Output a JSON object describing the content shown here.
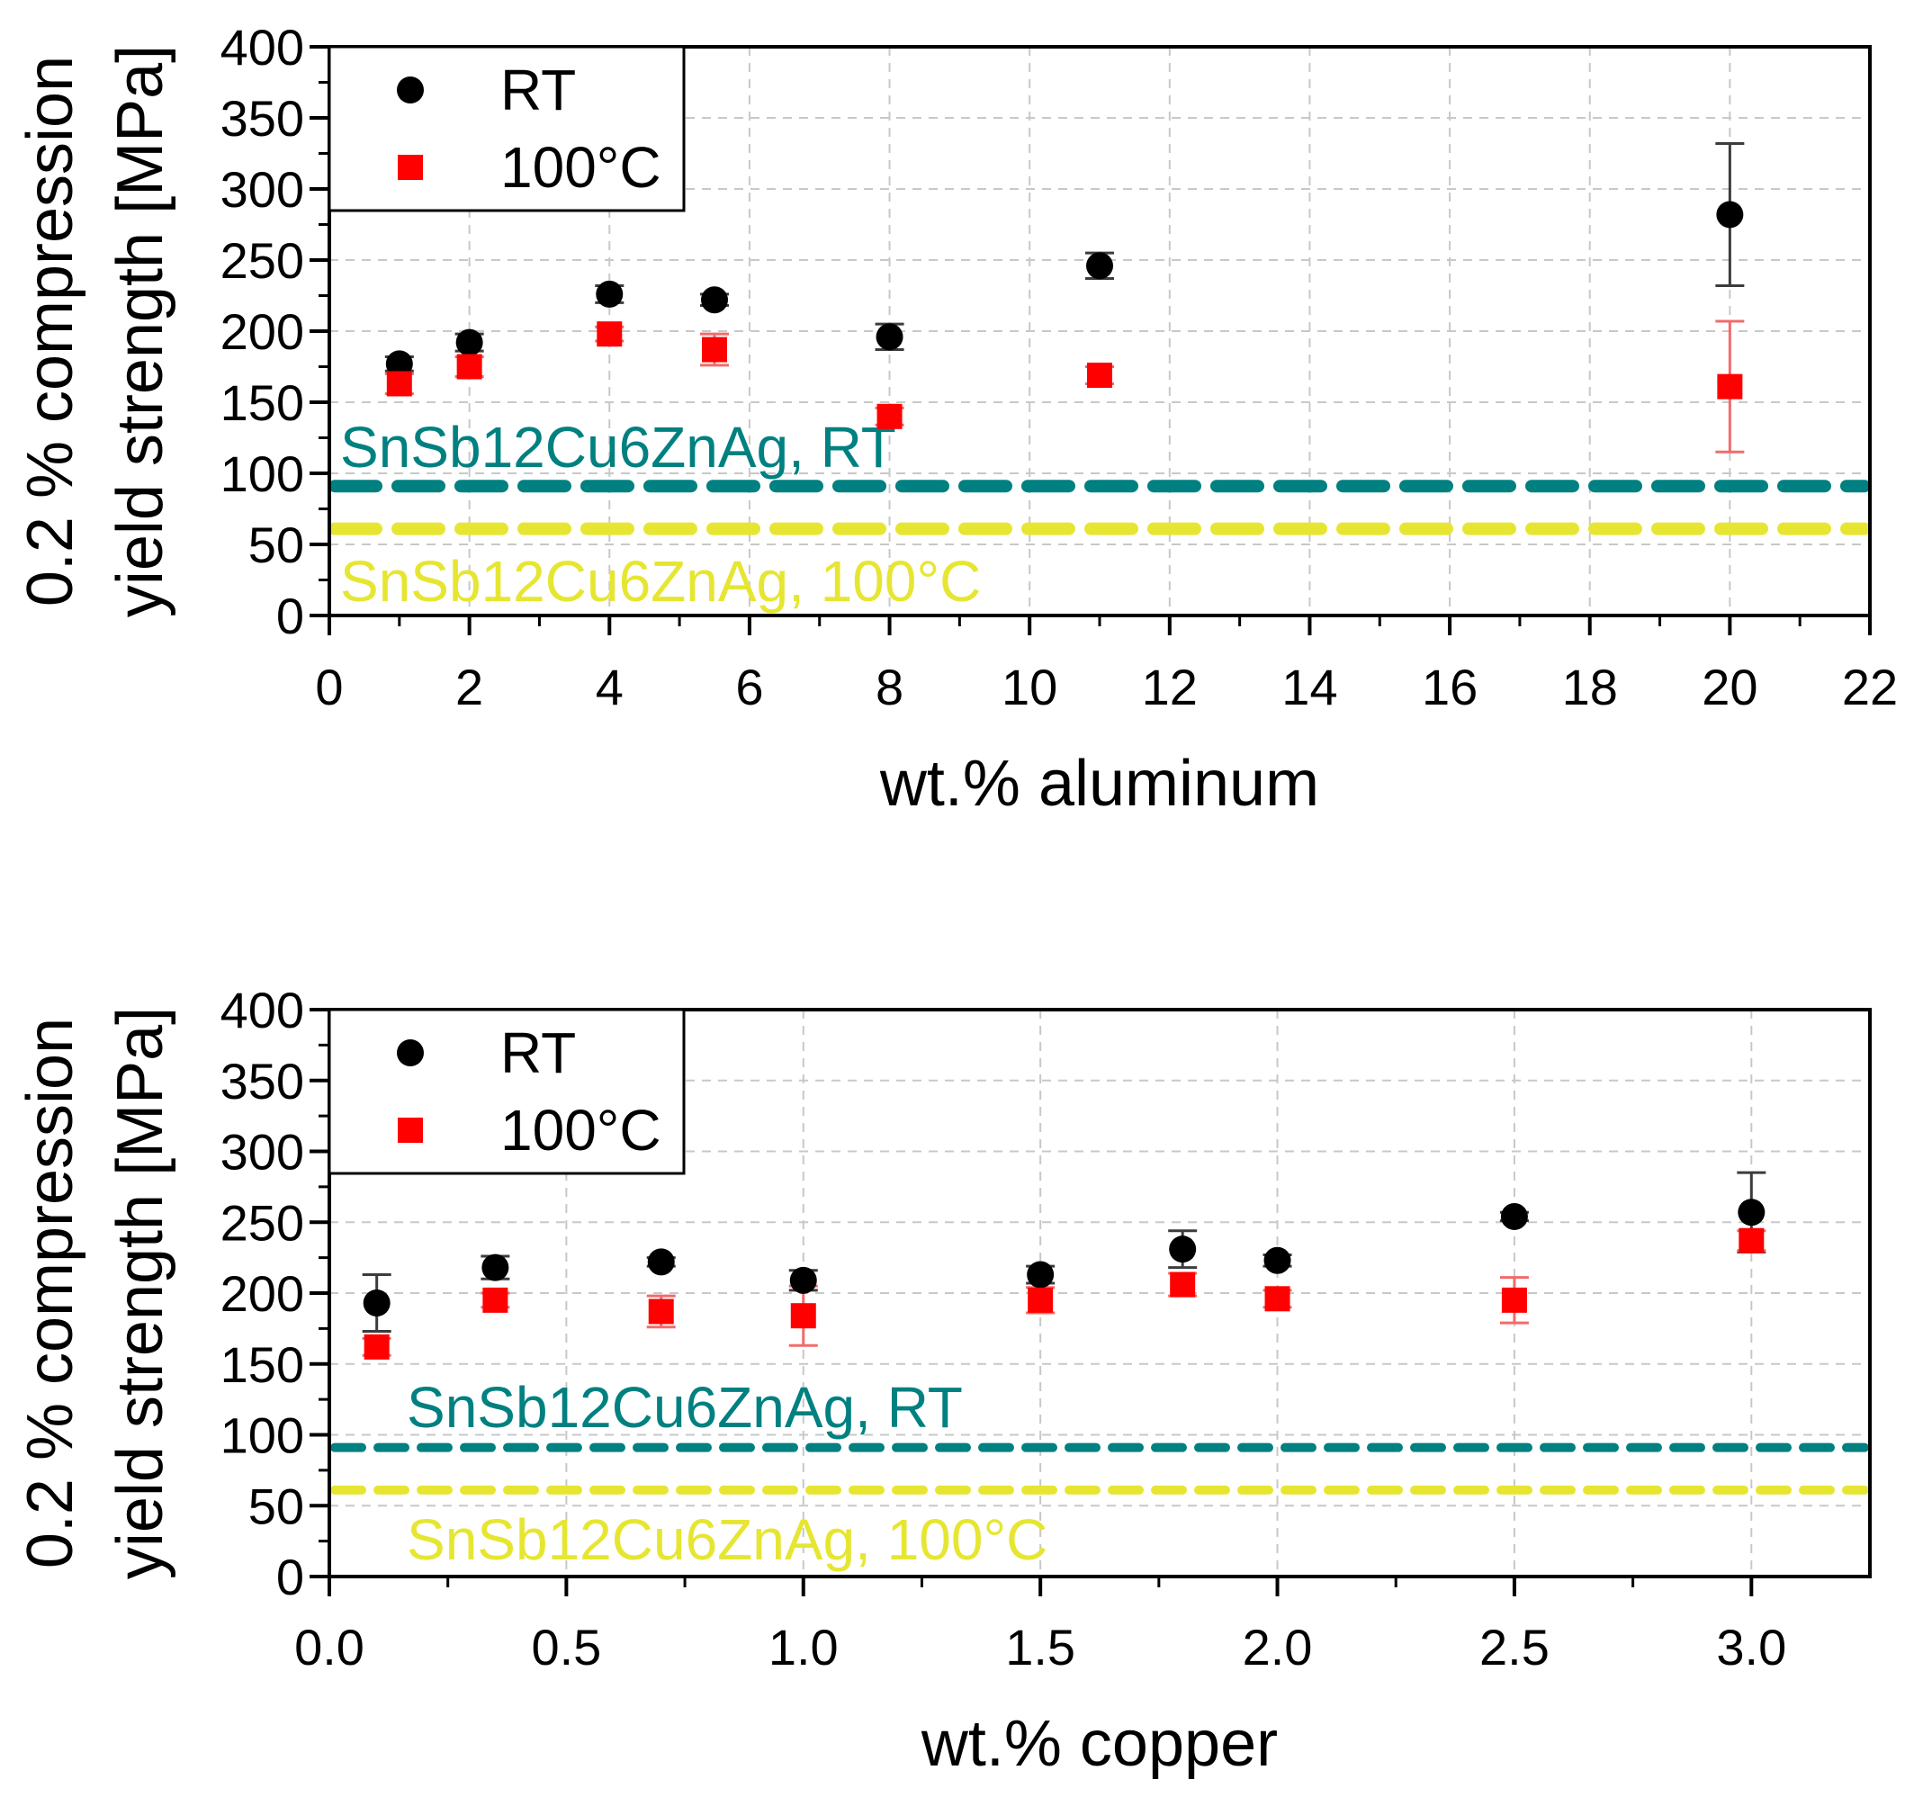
{
  "chart_data": [
    {
      "type": "scatter",
      "xlabel": "wt.% aluminum",
      "ylabel_lines": [
        "0.2 % compression",
        "yield strength [MPa]"
      ],
      "xlim": [
        0,
        22
      ],
      "ylim": [
        0,
        400
      ],
      "xticks": [
        "0",
        "2",
        "4",
        "6",
        "8",
        "10",
        "12",
        "14",
        "16",
        "18",
        "20",
        "22"
      ],
      "yticks": [
        "0",
        "50",
        "100",
        "150",
        "200",
        "250",
        "300",
        "350",
        "400"
      ],
      "grid": true,
      "legend_position": "top-left",
      "series": [
        {
          "name": "RT",
          "marker": "circle",
          "color": "#000000",
          "errorbar_color": "#3c3c3c",
          "x": [
            1,
            2,
            4,
            5.5,
            8,
            11,
            20
          ],
          "y": [
            177,
            192,
            226,
            222,
            196,
            246,
            282
          ],
          "err": [
            5,
            6,
            6,
            4,
            9,
            9,
            50
          ]
        },
        {
          "name": "100°C",
          "marker": "square",
          "color": "#ff0000",
          "errorbar_color": "#f26b6b",
          "x": [
            1,
            2,
            4,
            5.5,
            8,
            11,
            20
          ],
          "y": [
            163,
            175,
            198,
            187,
            140,
            169,
            161
          ],
          "err": [
            7,
            7,
            5,
            11,
            6,
            6,
            46
          ]
        }
      ],
      "reference_lines": [
        {
          "label": "SnSb12Cu6ZnAg, RT",
          "y": 91,
          "color": "#008080"
        },
        {
          "label": "SnSb12Cu6ZnAg, 100°C",
          "y": 61,
          "color": "#e6e632"
        }
      ]
    },
    {
      "type": "scatter",
      "xlabel": "wt.% copper",
      "ylabel_lines": [
        "0.2 % compression",
        "yield strength [MPa]"
      ],
      "xlim": [
        0,
        3.25
      ],
      "ylim": [
        0,
        400
      ],
      "xticks": [
        "0.0",
        "0.5",
        "1.0",
        "1.5",
        "2.0",
        "2.5",
        "3.0"
      ],
      "yticks": [
        "0",
        "50",
        "100",
        "150",
        "200",
        "250",
        "300",
        "350",
        "400"
      ],
      "grid": true,
      "legend_position": "top-left",
      "series": [
        {
          "name": "RT",
          "marker": "circle",
          "color": "#000000",
          "errorbar_color": "#3c3c3c",
          "x": [
            0.1,
            0.35,
            0.7,
            1.0,
            1.5,
            1.8,
            2.0,
            2.5,
            3.0
          ],
          "y": [
            193,
            218,
            222,
            209,
            213,
            231,
            223,
            254,
            257
          ],
          "err": [
            20,
            8,
            3,
            7,
            6,
            13,
            4,
            3,
            28
          ]
        },
        {
          "name": "100°C",
          "marker": "square",
          "color": "#ff0000",
          "errorbar_color": "#f26b6b",
          "x": [
            0.1,
            0.35,
            0.7,
            1.0,
            1.5,
            1.8,
            2.0,
            2.5,
            3.0
          ],
          "y": [
            162,
            195,
            187,
            184,
            195,
            206,
            196,
            195,
            237
          ],
          "err": [
            6,
            5,
            11,
            21,
            9,
            8,
            6,
            16,
            7
          ]
        }
      ],
      "reference_lines": [
        {
          "label": "SnSb12Cu6ZnAg, RT",
          "y": 91,
          "color": "#008080"
        },
        {
          "label": "SnSb12Cu6ZnAg, 100°C",
          "y": 61,
          "color": "#e6e632"
        }
      ]
    }
  ]
}
